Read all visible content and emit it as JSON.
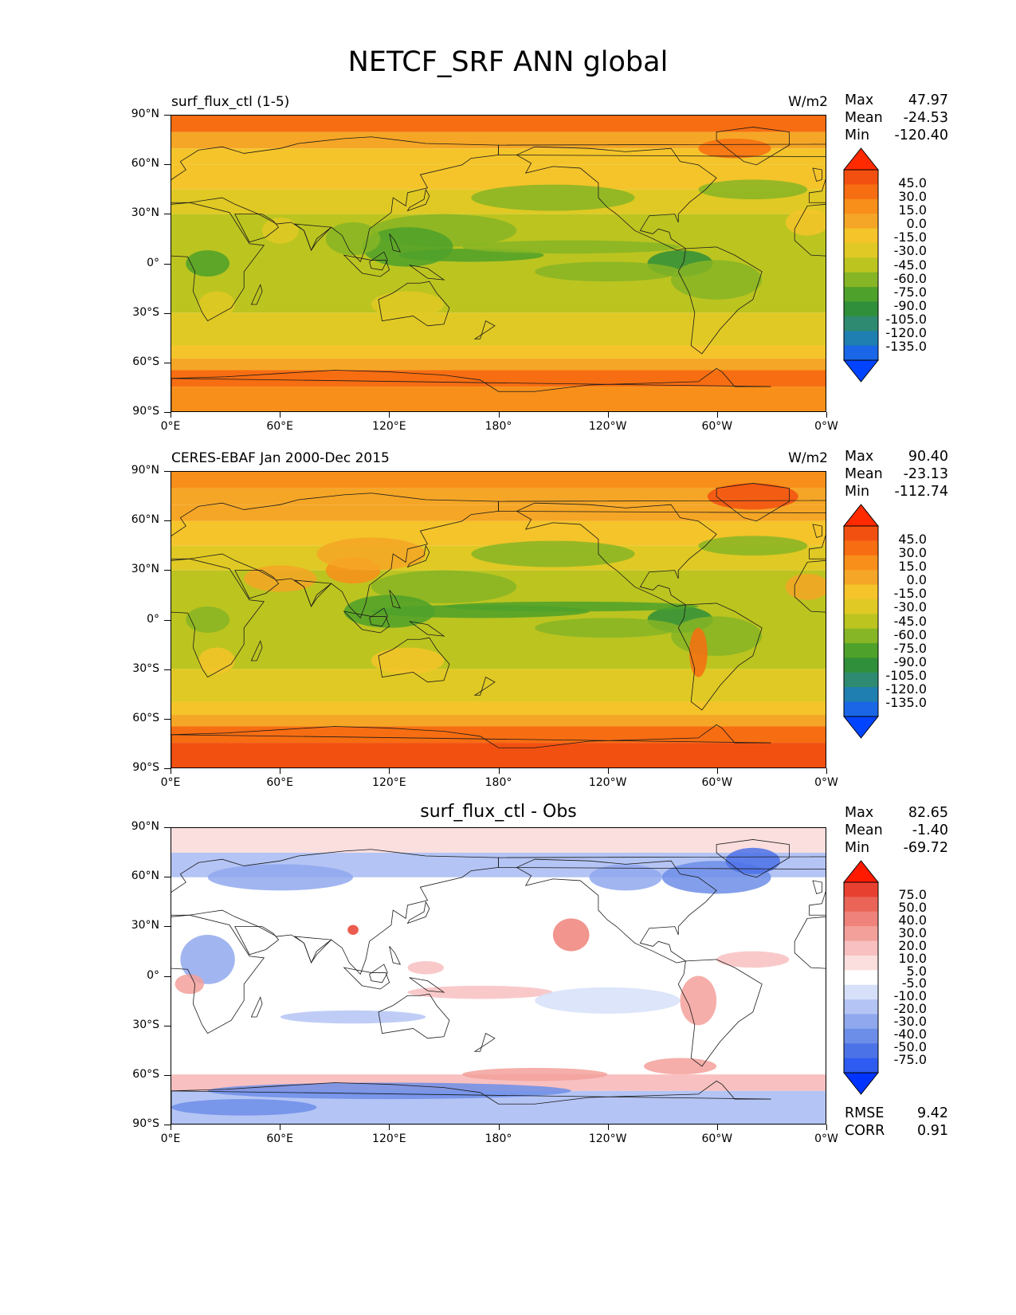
{
  "title": "NETCF_SRF ANN global",
  "x_ticks": [
    "0°E",
    "60°E",
    "120°E",
    "180°",
    "120°W",
    "60°W",
    "0°W"
  ],
  "y_ticks": [
    "90°N",
    "60°N",
    "30°N",
    "0°",
    "30°S",
    "60°S",
    "90°S"
  ],
  "colors": {
    "abs_scale": [
      "#0044ff",
      "#1a66e6",
      "#1e7fb0",
      "#2e8a70",
      "#2f8f3a",
      "#4ea12a",
      "#86b525",
      "#bcc420",
      "#e0c924",
      "#f4c42a",
      "#f5a626",
      "#f78f1a",
      "#f76d12",
      "#f25010",
      "#ff2a00"
    ],
    "diff_scale": [
      "#0033ff",
      "#2e5cf0",
      "#4c72e8",
      "#6d8ee8",
      "#90a8ee",
      "#b4c4f4",
      "#d6e0f8",
      "#ffffff",
      "#fbdede",
      "#f8c0c0",
      "#f3a09a",
      "#ef827a",
      "#ea6558",
      "#e84030",
      "#ff1a00"
    ],
    "coastline": "#1a1a1a"
  },
  "panels": [
    {
      "title": "surf_flux_ctl (1-5)",
      "title_align": "left",
      "units": "W/m2",
      "stats": {
        "max_label": "Max",
        "max": "47.97",
        "mean_label": "Mean",
        "mean": "-24.53",
        "min_label": "Min",
        "min": "-120.40"
      },
      "colorbar_labels": [
        "45.0",
        "30.0",
        "15.0",
        "0.0",
        "-15.0",
        "-30.0",
        "-45.0",
        "-60.0",
        "-75.0",
        "-90.0",
        "-105.0",
        "-120.0",
        "-135.0"
      ],
      "scale": "abs"
    },
    {
      "title": "CERES-EBAF Jan 2000-Dec 2015",
      "title_align": "left",
      "units": "W/m2",
      "stats": {
        "max_label": "Max",
        "max": "90.40",
        "mean_label": "Mean",
        "mean": "-23.13",
        "min_label": "Min",
        "min": "-112.74"
      },
      "colorbar_labels": [
        "45.0",
        "30.0",
        "15.0",
        "0.0",
        "-15.0",
        "-30.0",
        "-45.0",
        "-60.0",
        "-75.0",
        "-90.0",
        "-105.0",
        "-120.0",
        "-135.0"
      ],
      "scale": "abs"
    },
    {
      "title": "surf_flux_ctl - Obs",
      "title_align": "center",
      "units": "",
      "stats": {
        "max_label": "Max",
        "max": "82.65",
        "mean_label": "Mean",
        "mean": "-1.40",
        "min_label": "Min",
        "min": "-69.72"
      },
      "colorbar_labels": [
        "75.0",
        "50.0",
        "40.0",
        "30.0",
        "20.0",
        "10.0",
        "5.0",
        "-5.0",
        "-10.0",
        "-20.0",
        "-30.0",
        "-40.0",
        "-50.0",
        "-75.0"
      ],
      "scale": "diff",
      "rmse_label": "RMSE",
      "rmse": "9.42",
      "corr_label": "CORR",
      "corr": "0.91"
    }
  ]
}
